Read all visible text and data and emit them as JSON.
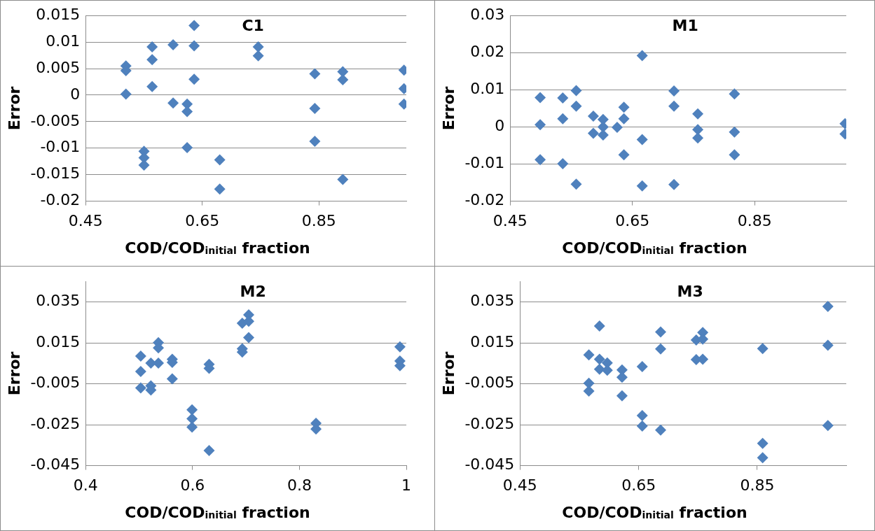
{
  "chart_data": [
    {
      "type": "scatter",
      "title": "C1",
      "xlabel": "COD/COD$_{initial}$ fraction",
      "ylabel": "Error",
      "xlim": [
        0.45,
        1.0
      ],
      "xticks": [
        0.45,
        0.65,
        0.85
      ],
      "ylim": [
        -0.02,
        0.015
      ],
      "yticks": [
        -0.02,
        -0.015,
        -0.01,
        -0.005,
        0,
        0.005,
        0.01,
        0.015
      ],
      "grid": "y",
      "marker": "diamond",
      "series": [
        {
          "color": "#4f81bd",
          "x": [
            0.519,
            0.519,
            0.519,
            0.55,
            0.55,
            0.55,
            0.564,
            0.564,
            0.564,
            0.6,
            0.6,
            0.624,
            0.624,
            0.624,
            0.636,
            0.636,
            0.636,
            0.68,
            0.68,
            0.746,
            0.746,
            0.843,
            0.843,
            0.843,
            0.891,
            0.891,
            0.891,
            0.996,
            0.996,
            0.996
          ],
          "values": [
            0.0055,
            0.0046,
            0.0002,
            -0.0106,
            -0.0118,
            -0.0132,
            0.0091,
            0.0067,
            0.0016,
            0.0095,
            -0.0015,
            -0.0017,
            -0.0031,
            -0.0099,
            0.0131,
            0.0093,
            0.003,
            -0.0122,
            -0.0177,
            0.0091,
            0.0074,
            0.004,
            -0.0025,
            -0.0087,
            0.0044,
            0.0029,
            -0.0159,
            0.0047,
            0.0012,
            -0.0017
          ]
        }
      ]
    },
    {
      "type": "scatter",
      "title": "M1",
      "xlabel": "COD/COD$_{initial}$ fraction",
      "ylabel": "Error",
      "xlim": [
        0.45,
        1.0
      ],
      "xticks": [
        0.45,
        0.65,
        0.85
      ],
      "ylim": [
        -0.02,
        0.03
      ],
      "yticks": [
        -0.02,
        -0.01,
        0,
        0.01,
        0.02,
        0.03
      ],
      "grid": "y",
      "marker": "diamond",
      "series": [
        {
          "color": "#4f81bd",
          "x": [
            0.499,
            0.499,
            0.499,
            0.536,
            0.536,
            0.536,
            0.558,
            0.558,
            0.558,
            0.586,
            0.586,
            0.602,
            0.602,
            0.602,
            0.625,
            0.636,
            0.636,
            0.636,
            0.666,
            0.666,
            0.666,
            0.718,
            0.718,
            0.718,
            0.757,
            0.757,
            0.757,
            0.817,
            0.817,
            0.817,
            0.998,
            0.998
          ],
          "values": [
            0.0079,
            0.0006,
            -0.0088,
            0.0078,
            0.0022,
            -0.0099,
            0.0098,
            0.0056,
            -0.0154,
            0.0029,
            -0.0017,
            0.002,
            0.0,
            -0.0022,
            -0.0001,
            0.0022,
            0.0053,
            -0.0075,
            0.0192,
            -0.0034,
            -0.0159,
            0.0097,
            0.0056,
            -0.0155,
            0.0035,
            -0.0007,
            -0.003,
            0.0089,
            -0.0014,
            -0.0075,
            0.0009,
            -0.0019
          ]
        }
      ]
    },
    {
      "type": "scatter",
      "title": "M2",
      "xlabel": "COD/COD$_{initial}$ fraction",
      "ylabel": "Error",
      "xlim": [
        0.4,
        1.0
      ],
      "xticks": [
        0.4,
        0.6,
        0.8,
        1
      ],
      "ylim": [
        -0.045,
        0.045
      ],
      "yticks": [
        -0.045,
        -0.025,
        -0.005,
        0.015,
        0.035
      ],
      "grid": "y",
      "marker": "diamond",
      "series": [
        {
          "color": "#4f81bd",
          "x": [
            0.503,
            0.503,
            0.503,
            0.522,
            0.522,
            0.522,
            0.536,
            0.536,
            0.536,
            0.562,
            0.562,
            0.562,
            0.599,
            0.599,
            0.599,
            0.631,
            0.631,
            0.631,
            0.693,
            0.693,
            0.693,
            0.705,
            0.705,
            0.705,
            0.831,
            0.831,
            0.988,
            0.988,
            0.988
          ],
          "values": [
            0.0085,
            0.001,
            -0.007,
            0.0051,
            -0.006,
            -0.0081,
            0.0151,
            0.0125,
            0.0051,
            0.007,
            0.0054,
            -0.0026,
            -0.0177,
            -0.0221,
            -0.0262,
            0.0045,
            0.0025,
            -0.0376,
            0.0246,
            0.0121,
            0.0105,
            0.0287,
            0.0255,
            0.0176,
            -0.0243,
            -0.0271,
            0.013,
            0.0061,
            0.0038
          ]
        }
      ]
    },
    {
      "type": "scatter",
      "title": "M3",
      "xlabel": "COD/COD$_{initial}$ fraction",
      "ylabel": "Error",
      "xlim": [
        0.45,
        1.0
      ],
      "xticks": [
        0.45,
        0.65,
        0.85
      ],
      "ylim": [
        -0.045,
        0.045
      ],
      "yticks": [
        -0.045,
        -0.025,
        -0.005,
        0.015,
        0.035
      ],
      "grid": "y",
      "marker": "diamond",
      "series": [
        {
          "color": "#4f81bd",
          "x": [
            0.584,
            0.566,
            0.584,
            0.597,
            0.584,
            0.597,
            0.622,
            0.622,
            0.622,
            0.566,
            0.566,
            0.656,
            0.656,
            0.656,
            0.687,
            0.687,
            0.687,
            0.747,
            0.747,
            0.758,
            0.758,
            0.758,
            0.859,
            0.859,
            0.859,
            0.969,
            0.969,
            0.969
          ],
          "values": [
            0.0232,
            0.0091,
            0.007,
            0.0052,
            0.0021,
            0.0016,
            0.0018,
            -0.0018,
            -0.0109,
            -0.0047,
            -0.0086,
            0.0034,
            -0.0205,
            -0.0257,
            0.0203,
            0.012,
            -0.0276,
            0.0164,
            0.0068,
            0.02,
            0.0168,
            0.007,
            0.0122,
            -0.0341,
            -0.0411,
            0.0328,
            0.0138,
            -0.0254
          ]
        }
      ]
    }
  ]
}
